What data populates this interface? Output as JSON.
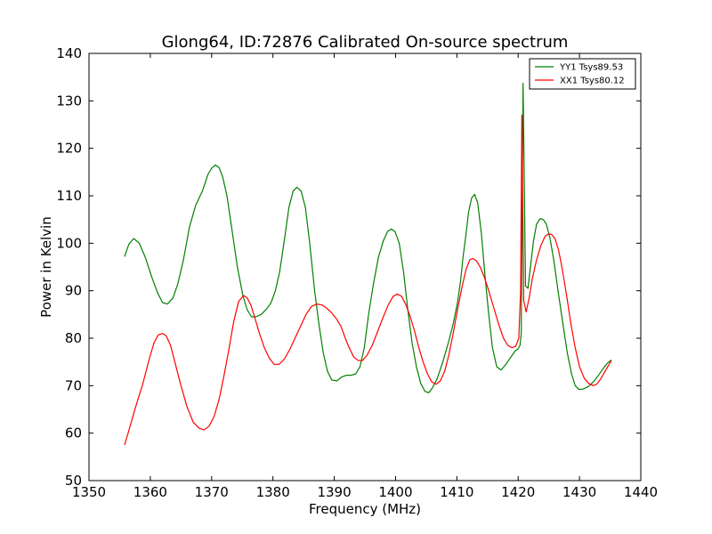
{
  "chart_data": {
    "type": "line",
    "title": "Glong64, ID:72876 Calibrated On-source spectrum",
    "xlabel": "Frequency (MHz)",
    "ylabel": "Power in Kelvin",
    "xlim": [
      1350,
      1440
    ],
    "ylim": [
      50,
      140
    ],
    "xticks": [
      1350,
      1360,
      1370,
      1380,
      1390,
      1400,
      1410,
      1420,
      1430,
      1440
    ],
    "yticks": [
      50,
      60,
      70,
      80,
      90,
      100,
      110,
      120,
      130,
      140
    ],
    "grid": false,
    "legend_position": "top-right",
    "series": [
      {
        "name": "YY1 Tsys89.53",
        "color": "#008000",
        "x": [
          1355.8,
          1356.5,
          1357.3,
          1358.2,
          1359.2,
          1360.2,
          1361.2,
          1362.0,
          1362.8,
          1363.7,
          1364.5,
          1365.4,
          1366.4,
          1367.4,
          1368.5,
          1369.4,
          1370.0,
          1370.6,
          1371.2,
          1371.8,
          1372.5,
          1373.3,
          1374.2,
          1375.1,
          1375.8,
          1376.5,
          1377.2,
          1378.1,
          1379.0,
          1379.7,
          1380.4,
          1381.1,
          1381.9,
          1382.6,
          1383.3,
          1383.9,
          1384.6,
          1385.3,
          1386.0,
          1386.8,
          1387.5,
          1388.2,
          1388.9,
          1389.6,
          1390.4,
          1391.2,
          1392.0,
          1392.8,
          1393.5,
          1394.2,
          1394.9,
          1395.6,
          1396.4,
          1397.2,
          1398.0,
          1398.7,
          1399.3,
          1399.9,
          1400.6,
          1401.3,
          1402.0,
          1402.7,
          1403.4,
          1404.1,
          1404.8,
          1405.4,
          1406.0,
          1406.8,
          1407.7,
          1408.6,
          1409.4,
          1410.1,
          1410.6,
          1411.0,
          1411.5,
          1411.9,
          1412.4,
          1412.9,
          1413.4,
          1414.0,
          1414.6,
          1415.2,
          1415.8,
          1416.5,
          1417.2,
          1418.0,
          1418.8,
          1419.5,
          1420.0,
          1420.3,
          1420.5,
          1420.8,
          1421.2,
          1421.6,
          1422.0,
          1422.5,
          1423.0,
          1423.6,
          1424.1,
          1424.6,
          1425.2,
          1425.8,
          1426.5,
          1427.3,
          1428.0,
          1428.7,
          1429.3,
          1429.9,
          1430.6,
          1431.4,
          1432.2,
          1433.0,
          1433.8,
          1434.6,
          1435.2
        ],
        "values": [
          97.2,
          99.8,
          101.0,
          100.0,
          97.0,
          93.0,
          89.5,
          87.5,
          87.2,
          88.5,
          91.5,
          96.5,
          103.5,
          108.0,
          111.0,
          114.5,
          115.8,
          116.5,
          116.0,
          114.0,
          110.0,
          103.0,
          95.0,
          89.0,
          86.0,
          84.5,
          84.5,
          85.0,
          86.2,
          87.5,
          90.0,
          94.0,
          101.0,
          107.5,
          111.0,
          111.8,
          111.0,
          107.5,
          100.0,
          90.0,
          83.0,
          77.0,
          73.0,
          71.2,
          71.0,
          71.8,
          72.2,
          72.2,
          72.5,
          74.0,
          78.0,
          85.0,
          91.5,
          97.0,
          100.5,
          102.5,
          103.0,
          102.5,
          100.0,
          94.0,
          86.0,
          79.0,
          74.0,
          70.5,
          68.8,
          68.5,
          69.5,
          71.5,
          75.0,
          79.0,
          83.0,
          87.5,
          92.0,
          97.0,
          102.0,
          106.5,
          109.5,
          110.3,
          108.5,
          102.0,
          93.0,
          85.0,
          78.0,
          74.0,
          73.3,
          74.5,
          76.0,
          77.3,
          77.8,
          78.5,
          81.0,
          133.7,
          91.0,
          90.5,
          95.0,
          100.5,
          104.0,
          105.2,
          105.0,
          104.0,
          101.0,
          96.5,
          90.0,
          83.0,
          77.0,
          72.5,
          70.0,
          69.2,
          69.3,
          69.8,
          70.7,
          72.0,
          73.5,
          74.8,
          75.4
        ]
      },
      {
        "name": "XX1 Tsys80.12",
        "color": "#ff0000",
        "x": [
          1355.8,
          1356.6,
          1357.6,
          1358.8,
          1359.8,
          1360.6,
          1361.3,
          1362.0,
          1362.6,
          1363.3,
          1364.1,
          1365.0,
          1366.0,
          1367.0,
          1368.0,
          1368.8,
          1369.6,
          1370.4,
          1371.2,
          1372.0,
          1372.8,
          1373.6,
          1374.4,
          1375.2,
          1375.8,
          1376.4,
          1377.0,
          1377.8,
          1378.6,
          1379.4,
          1380.2,
          1381.0,
          1381.8,
          1382.7,
          1383.6,
          1384.5,
          1385.4,
          1386.3,
          1387.2,
          1388.0,
          1388.8,
          1389.6,
          1390.4,
          1391.1,
          1391.8,
          1392.5,
          1393.2,
          1393.9,
          1394.6,
          1395.3,
          1396.2,
          1397.1,
          1398.0,
          1398.8,
          1399.6,
          1400.3,
          1401.0,
          1401.7,
          1402.4,
          1403.1,
          1403.8,
          1404.5,
          1405.2,
          1405.9,
          1406.6,
          1407.3,
          1408.0,
          1408.7,
          1409.4,
          1410.1,
          1410.8,
          1411.5,
          1412.1,
          1412.6,
          1413.2,
          1413.8,
          1414.5,
          1415.2,
          1416.0,
          1416.8,
          1417.6,
          1418.3,
          1419.0,
          1419.6,
          1420.1,
          1420.4,
          1420.6,
          1420.9,
          1421.3,
          1421.8,
          1422.3,
          1423.0,
          1423.7,
          1424.4,
          1425.0,
          1425.5,
          1426.0,
          1426.6,
          1427.2,
          1427.9,
          1428.6,
          1429.3,
          1430.0,
          1430.8,
          1431.5,
          1432.2,
          1432.8,
          1433.5,
          1434.3,
          1435.2
        ],
        "values": [
          57.5,
          61.0,
          65.5,
          70.5,
          75.5,
          79.0,
          80.7,
          81.0,
          80.5,
          78.5,
          74.5,
          70.0,
          65.5,
          62.3,
          61.0,
          60.7,
          61.5,
          63.5,
          67.0,
          72.0,
          77.5,
          83.5,
          87.7,
          89.0,
          88.5,
          87.0,
          84.5,
          81.0,
          78.0,
          75.8,
          74.5,
          74.5,
          75.5,
          77.5,
          80.0,
          82.5,
          85.0,
          86.7,
          87.2,
          87.0,
          86.3,
          85.3,
          84.0,
          82.5,
          80.0,
          77.8,
          76.0,
          75.3,
          75.3,
          76.3,
          78.5,
          81.5,
          84.5,
          87.0,
          88.8,
          89.3,
          88.8,
          87.0,
          84.5,
          81.5,
          78.0,
          75.0,
          72.5,
          70.8,
          70.3,
          71.0,
          73.0,
          76.5,
          81.0,
          86.0,
          90.5,
          94.5,
          96.5,
          96.8,
          96.3,
          95.0,
          92.8,
          90.0,
          86.5,
          83.0,
          80.0,
          78.5,
          78.0,
          78.3,
          80.0,
          90.0,
          127.0,
          88.0,
          85.5,
          88.5,
          92.5,
          96.5,
          99.5,
          101.5,
          102.0,
          101.8,
          101.0,
          98.5,
          94.5,
          89.0,
          83.0,
          78.0,
          74.0,
          71.5,
          70.5,
          70.0,
          70.3,
          71.5,
          73.3,
          75.3
        ]
      }
    ]
  }
}
